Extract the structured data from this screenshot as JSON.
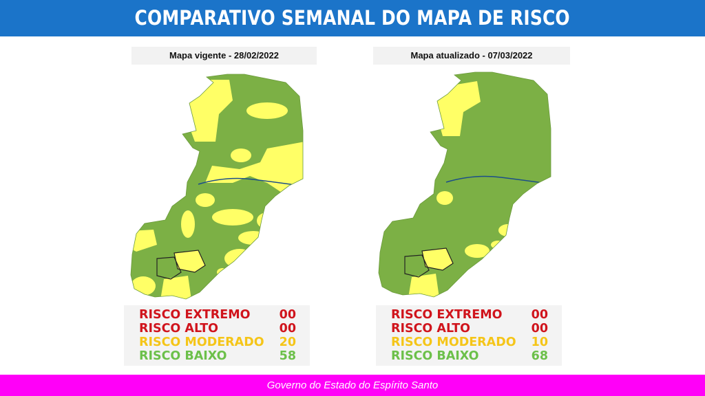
{
  "header": {
    "title": "COMPARATIVO SEMANAL DO MAPA DE RISCO"
  },
  "colors": {
    "header": "#1b74c9",
    "footer": "#ff00f8",
    "extremo": "#d0141c",
    "alto": "#d0141c",
    "moderado": "#f5c518",
    "baixo": "#6cc04a",
    "map_green": "#7cb045",
    "map_yellow": "#ffff66"
  },
  "panels": [
    {
      "title": "Mapa vigente - 28/02/2022",
      "legend": [
        {
          "label": "RISCO EXTREMO",
          "value": "00"
        },
        {
          "label": "RISCO ALTO",
          "value": "00"
        },
        {
          "label": "RISCO MODERADO",
          "value": "20"
        },
        {
          "label": "RISCO BAIXO",
          "value": "58"
        }
      ]
    },
    {
      "title": "Mapa atualizado - 07/03/2022",
      "legend": [
        {
          "label": "RISCO EXTREMO",
          "value": "00"
        },
        {
          "label": "RISCO ALTO",
          "value": "00"
        },
        {
          "label": "RISCO MODERADO",
          "value": "10"
        },
        {
          "label": "RISCO BAIXO",
          "value": "68"
        }
      ]
    }
  ],
  "footer": {
    "text": "Governo do Estado do Espírito Santo"
  }
}
